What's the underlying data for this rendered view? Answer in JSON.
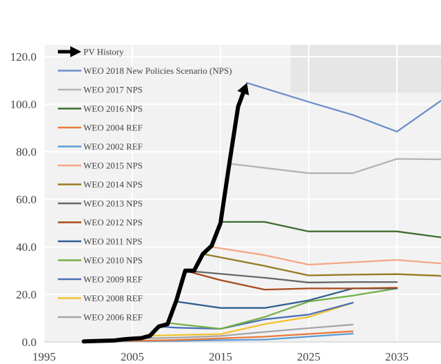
{
  "chart_data": {
    "type": "line",
    "xlim": [
      1995,
      2040
    ],
    "ylim": [
      0,
      125
    ],
    "x_ticks": [
      1995,
      2005,
      2015,
      2025,
      2035
    ],
    "x_tick_labels": [
      "1995",
      "2005",
      "2015",
      "2025",
      "2035"
    ],
    "y_ticks": [
      0,
      20,
      40,
      60,
      80,
      100,
      120
    ],
    "y_tick_labels": [
      "0.0",
      "20.0",
      "40.0",
      "60.0",
      "80.0",
      "100.0",
      "120.0"
    ],
    "grid": true,
    "legend_position": "top-left",
    "series": [
      {
        "name": "PV History",
        "color": "#000000",
        "style": "thick-arrow",
        "points": [
          [
            1999.5,
            0.2
          ],
          [
            2000,
            0.3
          ],
          [
            2001,
            0.4
          ],
          [
            2002,
            0.5
          ],
          [
            2003,
            0.6
          ],
          [
            2004,
            1.1
          ],
          [
            2005,
            1.4
          ],
          [
            2006,
            1.6
          ],
          [
            2007,
            2.6
          ],
          [
            2008,
            6.5
          ],
          [
            2009,
            7.5
          ],
          [
            2010,
            17.5
          ],
          [
            2011,
            30.0
          ],
          [
            2012,
            30.0
          ],
          [
            2013,
            37.0
          ],
          [
            2014,
            40.5
          ],
          [
            2015,
            50.0
          ],
          [
            2016,
            75.0
          ],
          [
            2017,
            99.0
          ],
          [
            2018,
            109.0
          ]
        ]
      },
      {
        "name": "WEO 2018 New Policies Scenario (NPS)",
        "color": "#6b8fc9",
        "points": [
          [
            2018,
            109
          ],
          [
            2025,
            101
          ],
          [
            2030,
            95.5
          ],
          [
            2035,
            88.5
          ],
          [
            2040,
            101.5
          ]
        ]
      },
      {
        "name": "WEO 2017 NPS",
        "color": "#b3b3b3",
        "points": [
          [
            2016,
            75
          ],
          [
            2025,
            71
          ],
          [
            2030,
            71
          ],
          [
            2035,
            77
          ],
          [
            2040,
            76.8
          ]
        ]
      },
      {
        "name": "WEO 2016 NPS",
        "color": "#3e6b2e",
        "points": [
          [
            2015,
            50.5
          ],
          [
            2020,
            50.5
          ],
          [
            2025,
            46.5
          ],
          [
            2030,
            46.5
          ],
          [
            2035,
            46.5
          ],
          [
            2040,
            44
          ]
        ]
      },
      {
        "name": "WEO 2004 REF",
        "color": "#e8793a",
        "points": [
          [
            2002,
            0.3
          ],
          [
            2010,
            0.8
          ],
          [
            2020,
            2.2
          ],
          [
            2030,
            4.5
          ]
        ]
      },
      {
        "name": "WEO 2002 REF",
        "color": "#5b9bd5",
        "points": [
          [
            2000,
            0.2
          ],
          [
            2010,
            0.5
          ],
          [
            2020,
            1.0
          ],
          [
            2030,
            3.5
          ]
        ]
      },
      {
        "name": "WEO 2015 NPS",
        "color": "#f4a582",
        "points": [
          [
            2014,
            40
          ],
          [
            2020,
            36.5
          ],
          [
            2025,
            32.5
          ],
          [
            2030,
            33.5
          ],
          [
            2035,
            34.5
          ],
          [
            2040,
            33
          ]
        ]
      },
      {
        "name": "WEO 2014 NPS",
        "color": "#967a1e",
        "points": [
          [
            2013,
            37
          ],
          [
            2020,
            32
          ],
          [
            2025,
            28
          ],
          [
            2030,
            28.3
          ],
          [
            2035,
            28.5
          ],
          [
            2040,
            27.8
          ]
        ]
      },
      {
        "name": "WEO 2013 NPS",
        "color": "#666666",
        "points": [
          [
            2011,
            30
          ],
          [
            2020,
            27
          ],
          [
            2025,
            25
          ],
          [
            2030,
            25.2
          ],
          [
            2035,
            25.2
          ]
        ]
      },
      {
        "name": "WEO 2012 NPS",
        "color": "#a84a1c",
        "points": [
          [
            2011,
            30
          ],
          [
            2015,
            26
          ],
          [
            2020,
            22
          ],
          [
            2025,
            22.5
          ],
          [
            2030,
            22.5
          ],
          [
            2035,
            22.8
          ]
        ]
      },
      {
        "name": "WEO 2011 NPS",
        "color": "#2e5f8f",
        "points": [
          [
            2010,
            17
          ],
          [
            2015,
            14.3
          ],
          [
            2020,
            14.3
          ],
          [
            2025,
            17.5
          ],
          [
            2030,
            22.5
          ],
          [
            2035,
            22.5
          ]
        ]
      },
      {
        "name": "WEO 2010 NPS",
        "color": "#72b045",
        "points": [
          [
            2009,
            8
          ],
          [
            2015,
            5.5
          ],
          [
            2020,
            10.5
          ],
          [
            2025,
            17
          ],
          [
            2030,
            19.5
          ],
          [
            2035,
            22.5
          ]
        ]
      },
      {
        "name": "WEO 2009 REF",
        "color": "#4a70b5",
        "points": [
          [
            2008,
            6.5
          ],
          [
            2010,
            6.0
          ],
          [
            2015,
            5.5
          ],
          [
            2020,
            9.5
          ],
          [
            2025,
            11.5
          ],
          [
            2030,
            16.5
          ]
        ]
      },
      {
        "name": "WEO 2008 REF",
        "color": "#f2c12e",
        "points": [
          [
            2007,
            2.6
          ],
          [
            2010,
            2.9
          ],
          [
            2015,
            3.3
          ],
          [
            2020,
            7.5
          ],
          [
            2025,
            10.5
          ],
          [
            2030,
            16.5
          ]
        ]
      },
      {
        "name": "WEO 2006 REF",
        "color": "#a6a6a6",
        "points": [
          [
            2005,
            1.4
          ],
          [
            2010,
            1.8
          ],
          [
            2015,
            2.5
          ],
          [
            2020,
            4.2
          ],
          [
            2025,
            5.8
          ],
          [
            2030,
            7.3
          ]
        ]
      }
    ]
  }
}
